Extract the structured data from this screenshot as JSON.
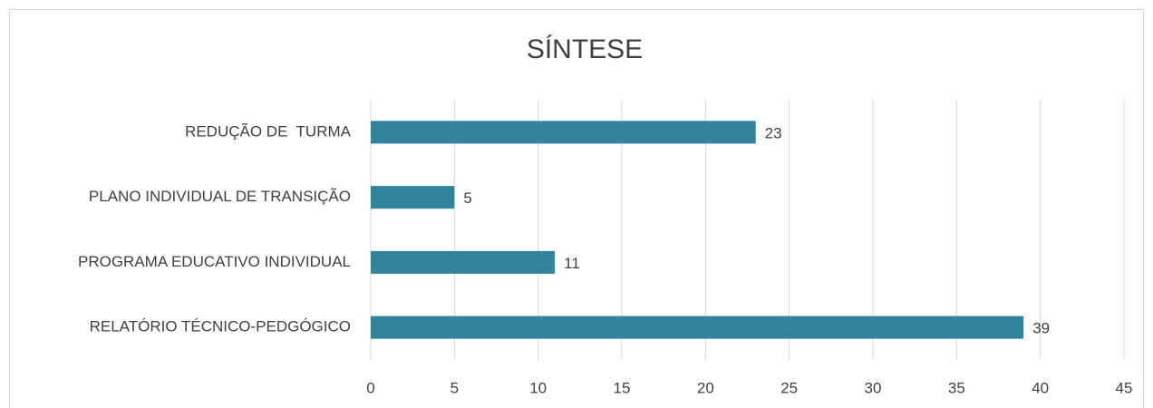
{
  "chart_data": {
    "type": "bar",
    "orientation": "horizontal",
    "title": "SÍNTESE",
    "categories": [
      "REDUÇÃO DE  TURMA",
      "PLANO INDIVIDUAL DE TRANSIÇÃO",
      "PROGRAMA EDUCATIVO INDIVIDUAL",
      "RELATÓRIO TÉCNICO-PEDGÓGICO"
    ],
    "values": [
      23,
      5,
      11,
      39
    ],
    "color": "#31849b",
    "xlim": [
      0,
      45
    ],
    "xticks": [
      0,
      5,
      10,
      15,
      20,
      25,
      30,
      35,
      40,
      45
    ],
    "grid": true
  }
}
